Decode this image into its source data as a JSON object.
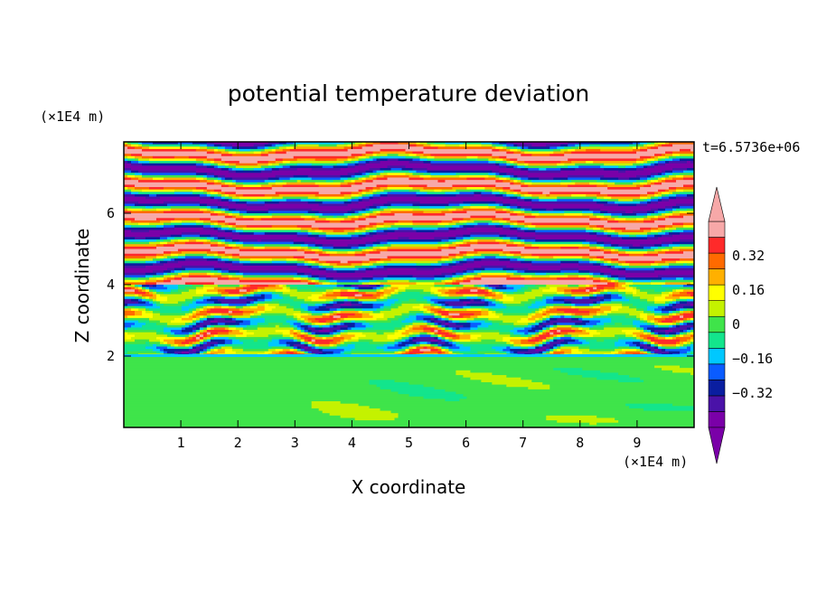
{
  "chart_data": {
    "type": "heatmap",
    "title": "potential temperature deviation",
    "xlabel": "X coordinate",
    "ylabel": "Z coordinate",
    "x_unit": "(×1E4 m)",
    "y_unit": "(×1E4 m)",
    "time_label": "t=6.5736e+06",
    "xlim": [
      0,
      10
    ],
    "ylim": [
      0,
      8
    ],
    "x_ticks": [
      1,
      2,
      3,
      4,
      5,
      6,
      7,
      8,
      9
    ],
    "y_ticks": [
      2,
      4,
      6
    ],
    "colorbar": {
      "levels": [
        -0.48,
        -0.4,
        -0.32,
        -0.24,
        -0.16,
        -0.08,
        0,
        0.08,
        0.16,
        0.24,
        0.32,
        0.4,
        0.48
      ],
      "tick_labels": [
        "0.32",
        "0.16",
        "0",
        "-0.16",
        "-0.32"
      ],
      "tick_values": [
        0.32,
        0.16,
        0,
        -0.16,
        -0.32
      ],
      "colors_low_to_high": [
        "#7a00a8",
        "#4a12a8",
        "#0a1ea0",
        "#0a5cff",
        "#00c8ff",
        "#13e58c",
        "#3fe44a",
        "#c4f200",
        "#ffff00",
        "#ffb000",
        "#ff6a00",
        "#ff2a2a",
        "#f7a8a8"
      ],
      "extend": "both"
    },
    "field_description": {
      "0_to_2": "near zero (green, light-green patches)",
      "2_to_4": "strongly mixed layers (all colors)",
      "4_to_8": "alternating bands of strong positive (pink) and strong negative (purple)"
    }
  }
}
